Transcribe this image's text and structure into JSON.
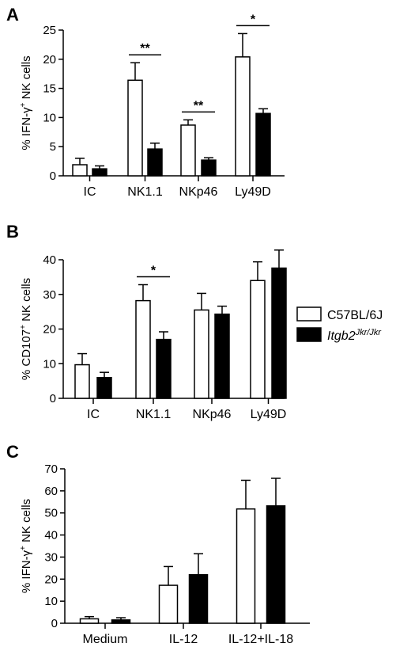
{
  "legend": {
    "entries": [
      {
        "name": "C57BL/6J",
        "fill": "#ffffff"
      },
      {
        "name_base": "Itgb2",
        "name_sup": "Jkr/Jkr",
        "fill": "#000000"
      }
    ]
  },
  "chart_data": [
    {
      "type": "bar",
      "panel_label": "A",
      "ylabel_pre": "% IFN-γ",
      "ylabel_sup": "+",
      "ylabel_post": " NK cells",
      "categories": [
        "IC",
        "NK1.1",
        "NKp46",
        "Ly49D"
      ],
      "ylim": [
        0,
        25
      ],
      "yticks": [
        "0",
        "5",
        "10",
        "15",
        "20",
        "25"
      ],
      "series": [
        {
          "values": [
            1.9,
            16.4,
            8.7,
            20.4
          ],
          "errors": [
            1.1,
            3.0,
            0.9,
            4.0
          ]
        },
        {
          "values": [
            1.2,
            4.6,
            2.7,
            10.7
          ],
          "errors": [
            0.5,
            1.0,
            0.4,
            0.8
          ]
        }
      ],
      "significance": [
        {
          "category": "NK1.1",
          "label": "**"
        },
        {
          "category": "NKp46",
          "label": "**"
        },
        {
          "category": "Ly49D",
          "label": "*"
        }
      ]
    },
    {
      "type": "bar",
      "panel_label": "B",
      "ylabel_pre": "% CD107",
      "ylabel_sup": "+",
      "ylabel_post": " NK cells",
      "categories": [
        "IC",
        "NK1.1",
        "NKp46",
        "Ly49D"
      ],
      "ylim": [
        0,
        40
      ],
      "yticks": [
        "0",
        "10",
        "20",
        "30",
        "40"
      ],
      "series": [
        {
          "values": [
            9.7,
            28.2,
            25.5,
            34.0
          ],
          "errors": [
            3.2,
            4.6,
            4.8,
            5.4
          ]
        },
        {
          "values": [
            6.0,
            17.0,
            24.3,
            37.6
          ],
          "errors": [
            1.5,
            2.2,
            2.3,
            5.2
          ]
        }
      ],
      "significance": [
        {
          "category": "NK1.1",
          "label": "*"
        }
      ]
    },
    {
      "type": "bar",
      "panel_label": "C",
      "ylabel_pre": "% IFN-γ",
      "ylabel_sup": "+",
      "ylabel_post": " NK cells",
      "categories": [
        "Medium",
        "IL-12",
        "IL-12+IL-18"
      ],
      "ylim": [
        0,
        70
      ],
      "yticks": [
        "0",
        "10",
        "20",
        "30",
        "40",
        "50",
        "60",
        "70"
      ],
      "series": [
        {
          "values": [
            2.0,
            17.2,
            51.8
          ],
          "errors": [
            1.0,
            8.5,
            13.0
          ]
        },
        {
          "values": [
            1.5,
            22.0,
            53.2
          ],
          "errors": [
            1.0,
            9.5,
            12.5
          ]
        }
      ],
      "significance": []
    }
  ]
}
